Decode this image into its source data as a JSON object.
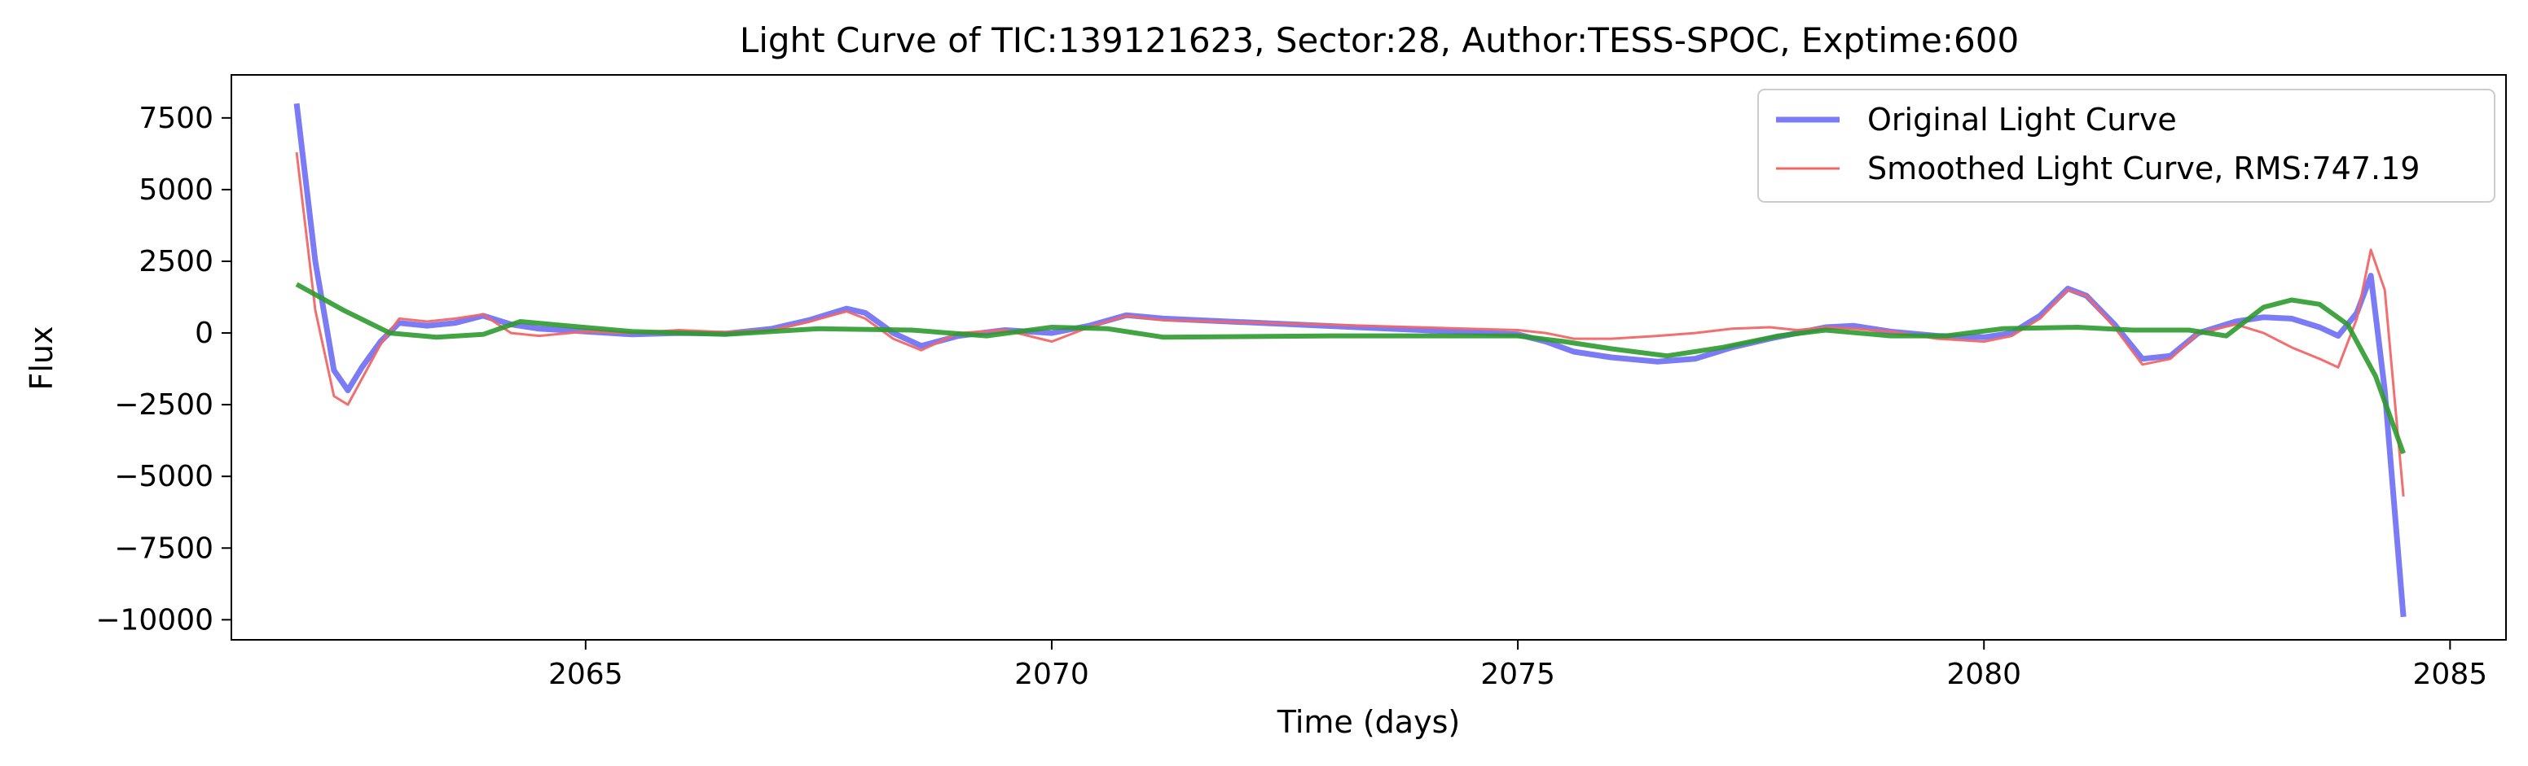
{
  "chart_data": {
    "type": "line",
    "title": "Light Curve of TIC:139121623, Sector:28, Author:TESS-SPOC, Exptime:600",
    "xlabel": "Time (days)",
    "ylabel": "Flux",
    "xlim": [
      2061.2,
      2085.6
    ],
    "ylim": [
      -10700,
      9000
    ],
    "xticks": [
      2065,
      2070,
      2075,
      2080,
      2085
    ],
    "xtick_labels": [
      "2065",
      "2070",
      "2075",
      "2080",
      "2085"
    ],
    "yticks": [
      7500,
      5000,
      2500,
      0,
      -2500,
      -5000,
      -7500,
      -10000
    ],
    "ytick_labels": [
      "7500",
      "5000",
      "2500",
      "0",
      "−2500",
      "−5000",
      "−7500",
      "−10000"
    ],
    "grid": false,
    "legend_position": "upper right",
    "series": [
      {
        "name": "Original Light Curve",
        "legend_label": "Original Light Curve",
        "color": "#7b7bf5",
        "x": [
          2061.9,
          2062.1,
          2062.3,
          2062.45,
          2062.6,
          2062.8,
          2063.0,
          2063.3,
          2063.6,
          2063.9,
          2064.2,
          2064.5,
          2065.0,
          2065.5,
          2066.0,
          2066.5,
          2067.0,
          2067.4,
          2067.8,
          2068.0,
          2068.3,
          2068.6,
          2069.0,
          2069.5,
          2070.0,
          2070.4,
          2070.8,
          2071.2,
          2075.0,
          2075.3,
          2075.6,
          2076.0,
          2076.5,
          2076.9,
          2077.3,
          2077.7,
          2078.0,
          2078.3,
          2078.6,
          2079.0,
          2079.5,
          2080.0,
          2080.3,
          2080.6,
          2080.9,
          2081.1,
          2081.4,
          2081.7,
          2082.0,
          2082.3,
          2082.7,
          2083.0,
          2083.3,
          2083.6,
          2083.8,
          2084.0,
          2084.15,
          2084.3,
          2084.5
        ],
        "y": [
          8000,
          2500,
          -1300,
          -2000,
          -1200,
          -300,
          350,
          250,
          350,
          600,
          300,
          150,
          50,
          -50,
          0,
          -20,
          150,
          450,
          850,
          700,
          0,
          -450,
          -100,
          100,
          0,
          250,
          620,
          500,
          -50,
          -300,
          -650,
          -850,
          -1000,
          -900,
          -500,
          -200,
          0,
          200,
          250,
          50,
          -100,
          -150,
          0,
          600,
          1550,
          1300,
          300,
          -900,
          -800,
          0,
          400,
          550,
          500,
          200,
          -100,
          700,
          2000,
          -2000,
          -9900
        ]
      },
      {
        "name": "Smoothed Light Curve, RMS:747.19",
        "legend_label": "Smoothed Light Curve, RMS:747.19",
        "color": "#f26666",
        "x": [
          2061.9,
          2062.1,
          2062.3,
          2062.45,
          2062.6,
          2062.8,
          2063.0,
          2063.3,
          2063.6,
          2063.9,
          2064.2,
          2064.5,
          2065.0,
          2065.5,
          2066.0,
          2066.5,
          2067.0,
          2067.4,
          2067.8,
          2068.0,
          2068.3,
          2068.6,
          2069.0,
          2069.5,
          2070.0,
          2070.4,
          2070.8,
          2071.2,
          2075.0,
          2075.3,
          2075.6,
          2076.0,
          2076.5,
          2076.9,
          2077.3,
          2077.7,
          2078.0,
          2078.3,
          2078.6,
          2079.0,
          2079.5,
          2080.0,
          2080.3,
          2080.6,
          2080.9,
          2081.1,
          2081.4,
          2081.7,
          2082.0,
          2082.3,
          2082.7,
          2083.0,
          2083.3,
          2083.6,
          2083.8,
          2084.0,
          2084.15,
          2084.3,
          2084.5
        ],
        "y": [
          6300,
          800,
          -2200,
          -2500,
          -1600,
          -400,
          500,
          400,
          500,
          650,
          0,
          -100,
          50,
          0,
          100,
          30,
          100,
          400,
          750,
          500,
          -200,
          -600,
          0,
          100,
          -300,
          200,
          600,
          450,
          100,
          0,
          -200,
          -200,
          -100,
          0,
          150,
          200,
          100,
          200,
          150,
          50,
          -200,
          -300,
          -100,
          500,
          1500,
          1300,
          200,
          -1100,
          -900,
          0,
          300,
          0,
          -500,
          -900,
          -1200,
          500,
          2900,
          1500,
          -5700
        ]
      },
      {
        "name": "",
        "legend_label": "",
        "color": "#2e9a2e",
        "x": [
          2061.9,
          2062.4,
          2062.9,
          2063.4,
          2063.9,
          2064.3,
          2064.8,
          2065.5,
          2066.5,
          2067.5,
          2068.5,
          2069.3,
          2070.0,
          2070.6,
          2071.2,
          2073.0,
          2075.0,
          2075.5,
          2076.0,
          2076.6,
          2077.2,
          2077.8,
          2078.3,
          2079.0,
          2079.6,
          2080.2,
          2081.0,
          2081.6,
          2082.2,
          2082.6,
          2083.0,
          2083.3,
          2083.6,
          2083.9,
          2084.2,
          2084.5
        ],
        "y": [
          1700,
          800,
          0,
          -150,
          -50,
          400,
          250,
          50,
          -50,
          150,
          100,
          -100,
          200,
          150,
          -150,
          -100,
          -100,
          -300,
          -550,
          -800,
          -500,
          -100,
          100,
          -100,
          -100,
          150,
          200,
          100,
          100,
          -100,
          900,
          1150,
          1000,
          300,
          -1500,
          -4200
        ]
      }
    ]
  }
}
